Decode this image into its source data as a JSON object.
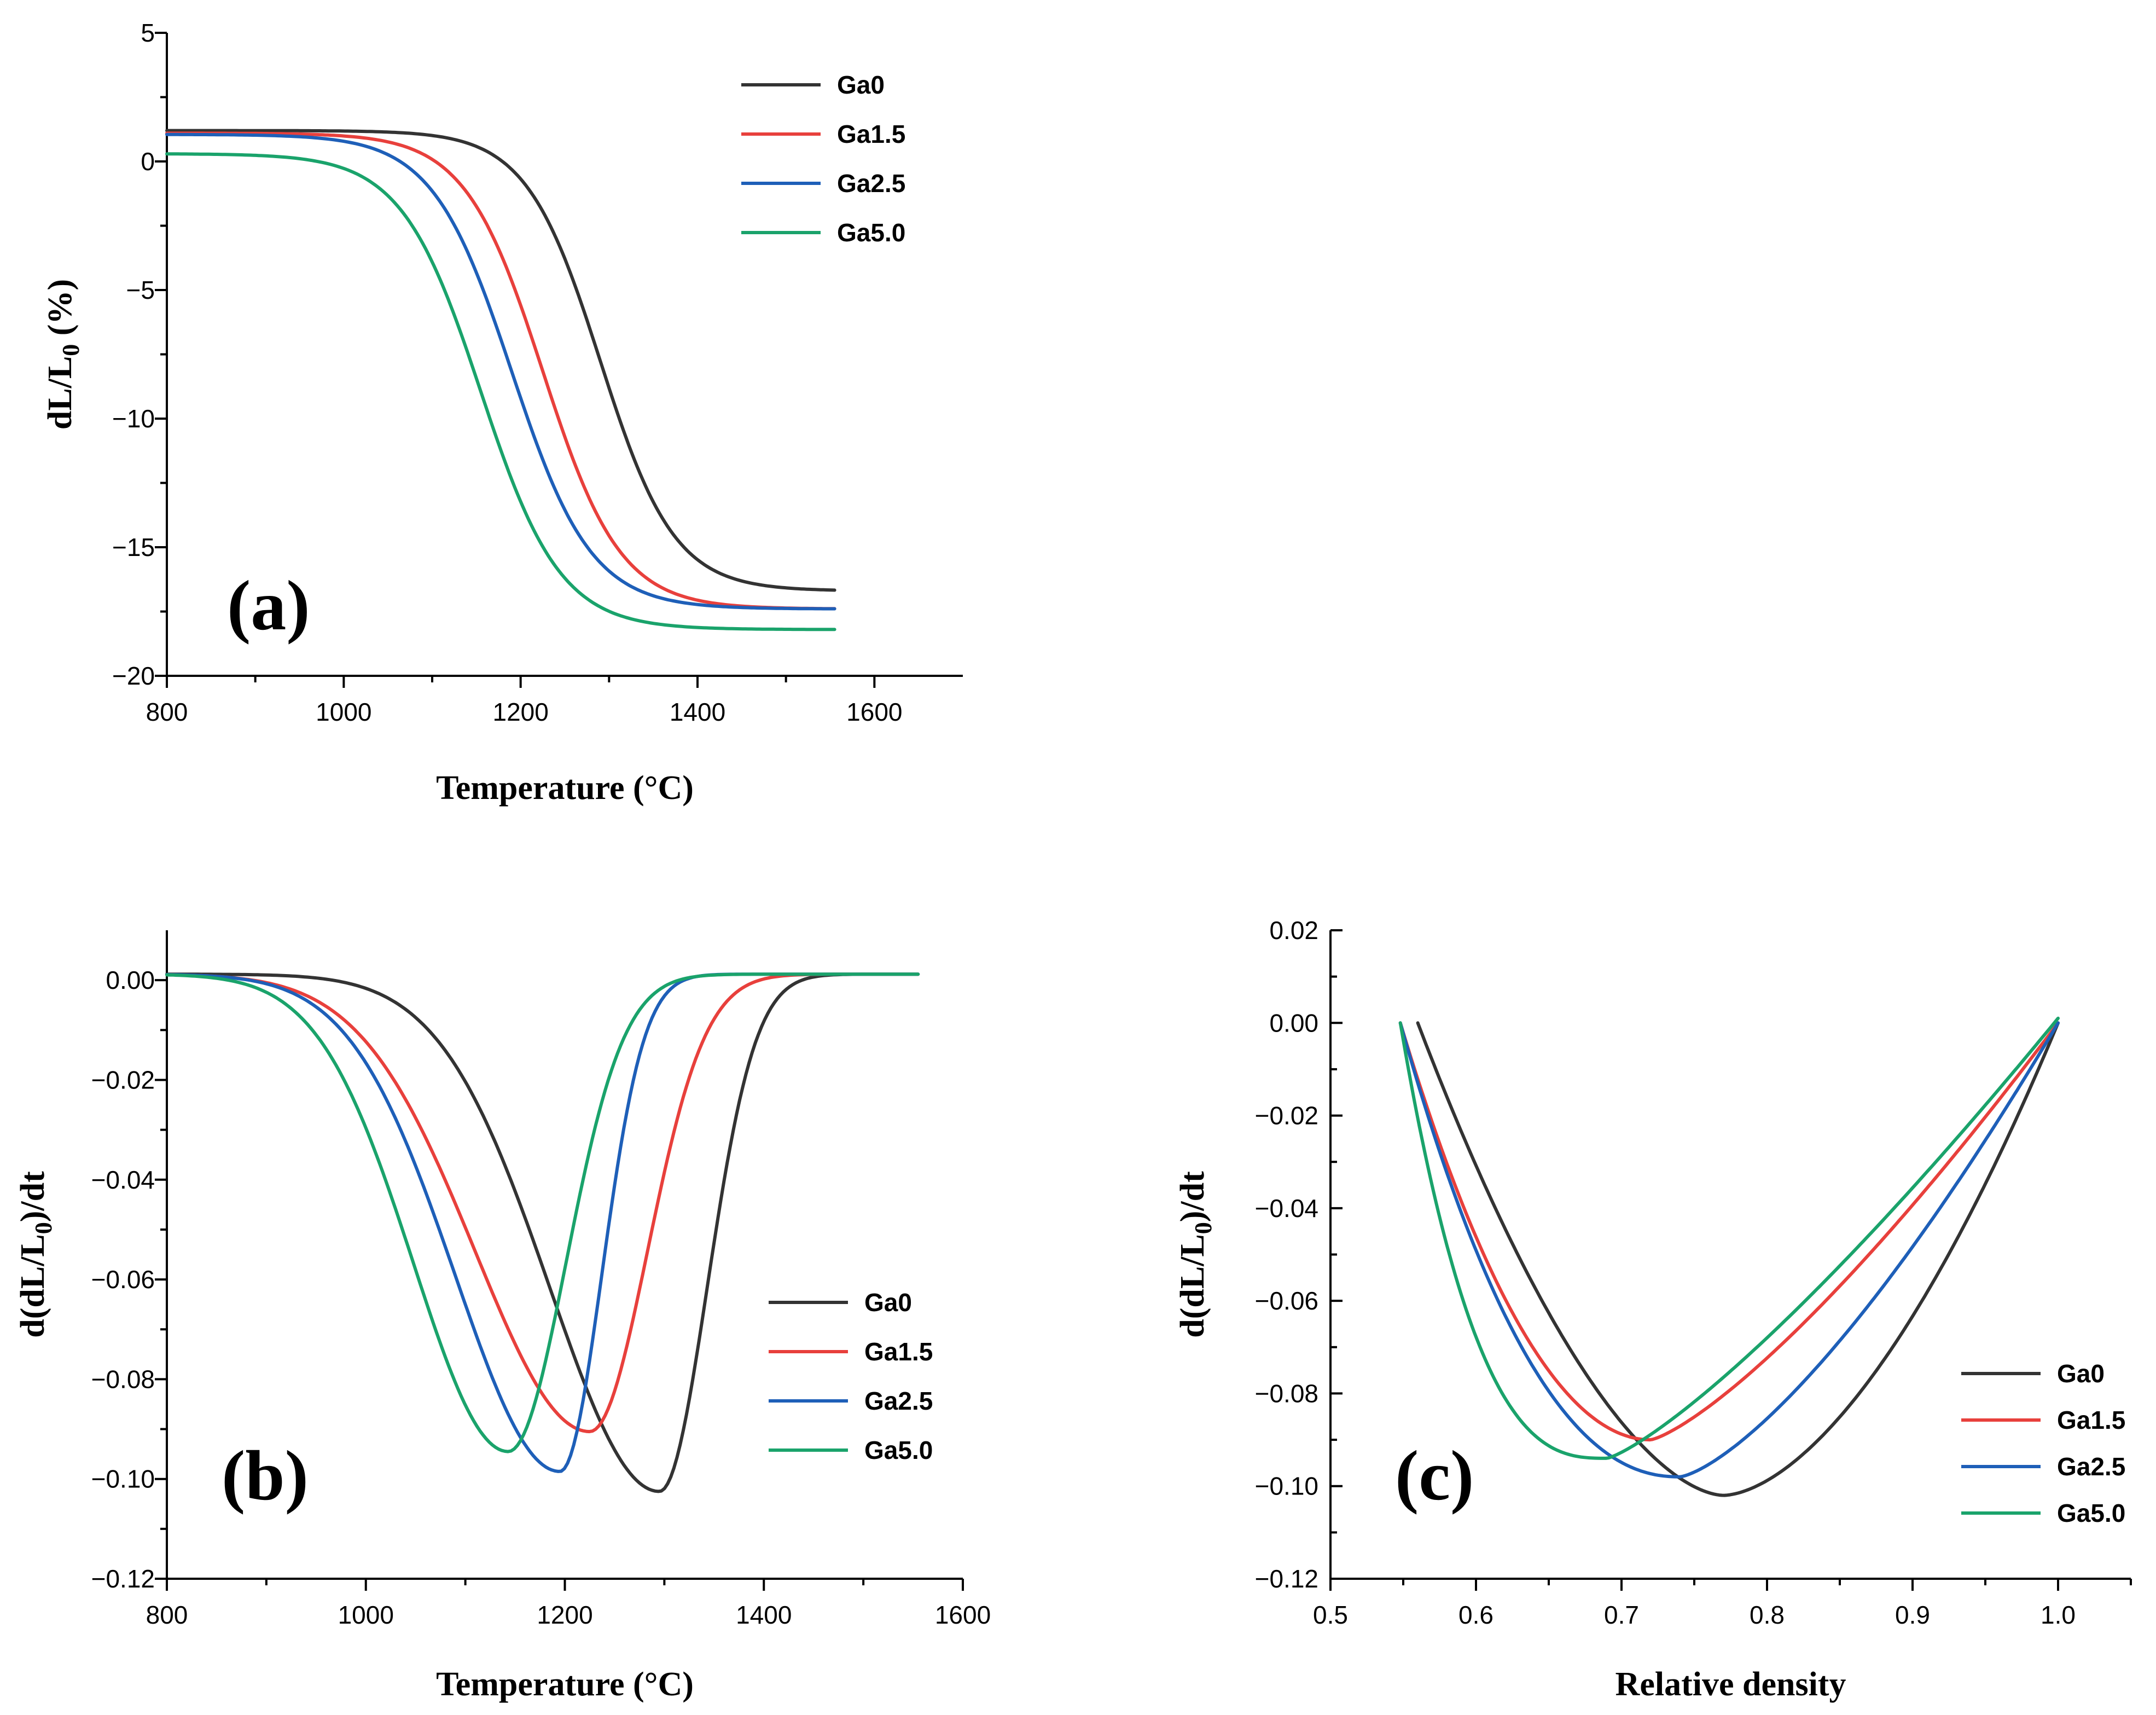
{
  "chart_data": [
    {
      "id": "a",
      "type": "line",
      "panel_label": "(a)",
      "xlabel": "Temperature (°C)",
      "ylabel_main": "dL/L",
      "ylabel_sub": "0",
      "ylabel_tail": " (%)",
      "xlim": [
        800,
        1700
      ],
      "ylim": [
        -20,
        5
      ],
      "xticks": [
        800,
        1000,
        1200,
        1400,
        1600
      ],
      "xtick_labels": [
        "800",
        "1000",
        "1200",
        "1400",
        "1600"
      ],
      "yticks": [
        5,
        0,
        -5,
        -10,
        -15,
        -20
      ],
      "ytick_labels": [
        "5",
        "0",
        "−5",
        "−10",
        "−15",
        "−20"
      ],
      "legend_position": "top-right",
      "series": [
        {
          "name": "Ga0",
          "color": "#333333",
          "model": "sigmoid",
          "x_start": 800,
          "x_end": 1555,
          "upper": 1.2,
          "lower": -16.7,
          "center": 1290,
          "width": 42
        },
        {
          "name": "Ga1.5",
          "color": "#e8403c",
          "model": "sigmoid",
          "x_start": 800,
          "x_end": 1555,
          "upper": 1.1,
          "lower": -17.4,
          "center": 1225,
          "width": 44
        },
        {
          "name": "Ga2.5",
          "color": "#1e5fb8",
          "model": "sigmoid",
          "x_start": 800,
          "x_end": 1555,
          "upper": 1.05,
          "lower": -17.4,
          "center": 1190,
          "width": 45
        },
        {
          "name": "Ga5.0",
          "color": "#1aa36b",
          "model": "sigmoid",
          "x_start": 800,
          "x_end": 1555,
          "upper": 0.3,
          "lower": -18.2,
          "center": 1155,
          "width": 45
        }
      ]
    },
    {
      "id": "b",
      "type": "line",
      "panel_label": "(b)",
      "xlabel": "Temperature (°C)",
      "ylabel_main": "d(dL/L",
      "ylabel_sub": "0",
      "ylabel_tail": ")/dt",
      "xlim": [
        800,
        1600
      ],
      "ylim": [
        -0.12,
        0.01
      ],
      "xticks": [
        800,
        1000,
        1200,
        1400,
        1600
      ],
      "xtick_labels": [
        "800",
        "1000",
        "1200",
        "1400",
        "1600"
      ],
      "yticks": [
        0,
        -0.02,
        -0.04,
        -0.06,
        -0.08,
        -0.1,
        -0.12
      ],
      "ytick_labels": [
        "0.00",
        "−0.02",
        "−0.04",
        "−0.06",
        "−0.08",
        "−0.10",
        "−0.12"
      ],
      "legend_position": "center-right",
      "series": [
        {
          "name": "Ga0",
          "color": "#333333",
          "model": "dip",
          "x_start": 800,
          "x_end": 1555,
          "base": 0.0012,
          "depth": -0.1025,
          "center": 1295,
          "sigma_left": 110,
          "sigma_right": 48
        },
        {
          "name": "Ga1.5",
          "color": "#e8403c",
          "model": "dip",
          "x_start": 800,
          "x_end": 1555,
          "base": 0.0012,
          "depth": -0.0905,
          "center": 1225,
          "sigma_left": 115,
          "sigma_right": 58
        },
        {
          "name": "Ga2.5",
          "color": "#1e5fb8",
          "model": "dip",
          "x_start": 800,
          "x_end": 1555,
          "base": 0.0012,
          "depth": -0.0985,
          "center": 1195,
          "sigma_left": 105,
          "sigma_right": 42
        },
        {
          "name": "Ga5.0",
          "color": "#1aa36b",
          "model": "dip",
          "x_start": 800,
          "x_end": 1555,
          "base": 0.0012,
          "depth": -0.0945,
          "center": 1143,
          "sigma_left": 95,
          "sigma_right": 58
        }
      ]
    },
    {
      "id": "c",
      "type": "line",
      "panel_label": "(c)",
      "xlabel": "Relative density",
      "ylabel_main": "d(dL/L",
      "ylabel_sub": "0",
      "ylabel_tail": ")/dt",
      "xlim": [
        0.5,
        1.05
      ],
      "ylim": [
        -0.12,
        0.02
      ],
      "xticks": [
        0.5,
        0.6,
        0.7,
        0.8,
        0.9,
        1.0
      ],
      "xtick_labels": [
        "0.5",
        "0.6",
        "0.7",
        "0.8",
        "0.9",
        "1.0"
      ],
      "yticks": [
        0.02,
        0,
        -0.02,
        -0.04,
        -0.06,
        -0.08,
        -0.1,
        -0.12
      ],
      "ytick_labels": [
        "0.02",
        "0.00",
        "−0.02",
        "−0.04",
        "−0.06",
        "−0.08",
        "−0.10",
        "−0.12"
      ],
      "legend_position": "bottom-right",
      "series": [
        {
          "name": "Ga0",
          "color": "#333333",
          "model": "bowl",
          "x_start": 0.56,
          "x_end": 1.0,
          "y_start": 0.0,
          "y_end": 0.0,
          "x_min": 0.77,
          "y_min": -0.102,
          "p_left": 1.7,
          "p_right": 1.7
        },
        {
          "name": "Ga1.5",
          "color": "#e8403c",
          "model": "bowl",
          "x_start": 0.548,
          "x_end": 1.0,
          "y_start": 0.0,
          "y_end": 0.0,
          "x_min": 0.72,
          "y_min": -0.09,
          "p_left": 2.0,
          "p_right": 1.3
        },
        {
          "name": "Ga2.5",
          "color": "#1e5fb8",
          "model": "bowl",
          "x_start": 0.548,
          "x_end": 1.0,
          "y_start": 0.0,
          "y_end": 0.0,
          "x_min": 0.74,
          "y_min": -0.098,
          "p_left": 2.2,
          "p_right": 1.4
        },
        {
          "name": "Ga5.0",
          "color": "#1aa36b",
          "model": "bowl",
          "x_start": 0.548,
          "x_end": 1.0,
          "y_start": 0.0,
          "y_end": 0.001,
          "x_min": 0.69,
          "y_min": -0.094,
          "p_left": 2.8,
          "p_right": 1.25
        }
      ]
    }
  ]
}
